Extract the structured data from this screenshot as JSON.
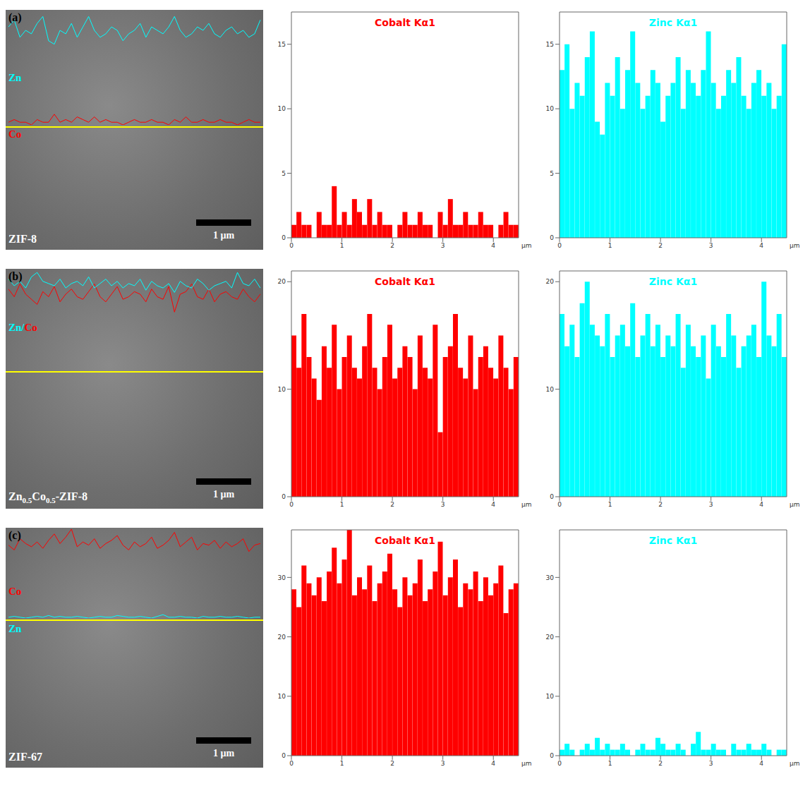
{
  "images": [
    {
      "label": "(a)",
      "sample": "ZIF-8",
      "scale_bar": "1 µm",
      "trace_labels": [
        "Zn",
        "Co"
      ]
    },
    {
      "label": "(b)",
      "sample": "Zn0.5Co0.5-ZIF-8",
      "scale_bar": "1 µm",
      "trace_labels": [
        "Zn/Co"
      ]
    },
    {
      "label": "(c)",
      "sample": "ZIF-67",
      "scale_bar": "1 µm",
      "trace_labels": [
        "Co",
        "Zn"
      ]
    }
  ],
  "chart_data": [
    {
      "type": "bar",
      "title": "Cobalt Kα1",
      "x_label": "µm",
      "color": "#ff0000",
      "xlim": [
        0,
        4.5
      ],
      "xticks": [
        0,
        1,
        2,
        3,
        4
      ],
      "ylim": [
        0,
        17.5
      ],
      "yticks": [
        0,
        5,
        10,
        15
      ],
      "x": [
        0.05,
        0.15,
        0.25,
        0.35,
        0.45,
        0.55,
        0.65,
        0.75,
        0.85,
        0.95,
        1.05,
        1.15,
        1.25,
        1.35,
        1.45,
        1.55,
        1.65,
        1.75,
        1.85,
        1.95,
        2.05,
        2.15,
        2.25,
        2.35,
        2.45,
        2.55,
        2.65,
        2.75,
        2.85,
        2.95,
        3.05,
        3.15,
        3.25,
        3.35,
        3.45,
        3.55,
        3.65,
        3.75,
        3.85,
        3.95,
        4.05,
        4.15,
        4.25,
        4.35,
        4.45
      ],
      "values": [
        1,
        2,
        1,
        1,
        0,
        2,
        1,
        1,
        4,
        1,
        2,
        1,
        3,
        2,
        1,
        3,
        1,
        2,
        1,
        1,
        0,
        1,
        2,
        1,
        1,
        2,
        1,
        1,
        0,
        2,
        1,
        3,
        1,
        1,
        2,
        1,
        1,
        2,
        1,
        1,
        0,
        1,
        2,
        1,
        1
      ]
    },
    {
      "type": "bar",
      "title": "Zinc Kα1",
      "x_label": "µm",
      "color": "#00ffff",
      "xlim": [
        0,
        4.5
      ],
      "xticks": [
        0,
        1,
        2,
        3,
        4
      ],
      "ylim": [
        0,
        17.5
      ],
      "yticks": [
        0,
        5,
        10,
        15
      ],
      "x": [
        0.05,
        0.15,
        0.25,
        0.35,
        0.45,
        0.55,
        0.65,
        0.75,
        0.85,
        0.95,
        1.05,
        1.15,
        1.25,
        1.35,
        1.45,
        1.55,
        1.65,
        1.75,
        1.85,
        1.95,
        2.05,
        2.15,
        2.25,
        2.35,
        2.45,
        2.55,
        2.65,
        2.75,
        2.85,
        2.95,
        3.05,
        3.15,
        3.25,
        3.35,
        3.45,
        3.55,
        3.65,
        3.75,
        3.85,
        3.95,
        4.05,
        4.15,
        4.25,
        4.35,
        4.45
      ],
      "values": [
        13,
        15,
        10,
        12,
        11,
        14,
        16,
        9,
        8,
        12,
        11,
        14,
        10,
        13,
        16,
        12,
        10,
        11,
        13,
        12,
        9,
        11,
        12,
        14,
        10,
        13,
        12,
        11,
        13,
        16,
        12,
        10,
        11,
        13,
        12,
        14,
        11,
        10,
        12,
        13,
        11,
        12,
        10,
        11,
        15
      ]
    },
    {
      "type": "bar",
      "title": "Cobalt Kα1",
      "x_label": "µm",
      "color": "#ff0000",
      "xlim": [
        0,
        4.5
      ],
      "xticks": [
        0,
        1,
        2,
        3,
        4
      ],
      "ylim": [
        0,
        21
      ],
      "yticks": [
        0,
        10,
        20
      ],
      "x": [
        0.05,
        0.15,
        0.25,
        0.35,
        0.45,
        0.55,
        0.65,
        0.75,
        0.85,
        0.95,
        1.05,
        1.15,
        1.25,
        1.35,
        1.45,
        1.55,
        1.65,
        1.75,
        1.85,
        1.95,
        2.05,
        2.15,
        2.25,
        2.35,
        2.45,
        2.55,
        2.65,
        2.75,
        2.85,
        2.95,
        3.05,
        3.15,
        3.25,
        3.35,
        3.45,
        3.55,
        3.65,
        3.75,
        3.85,
        3.95,
        4.05,
        4.15,
        4.25,
        4.35,
        4.45
      ],
      "values": [
        15,
        12,
        17,
        13,
        11,
        9,
        14,
        12,
        16,
        10,
        13,
        15,
        12,
        11,
        14,
        17,
        12,
        10,
        13,
        16,
        11,
        12,
        14,
        13,
        10,
        15,
        12,
        11,
        16,
        6,
        13,
        14,
        17,
        12,
        11,
        15,
        10,
        13,
        14,
        12,
        11,
        15,
        12,
        10,
        13
      ]
    },
    {
      "type": "bar",
      "title": "Zinc Kα1",
      "x_label": "µm",
      "color": "#00ffff",
      "xlim": [
        0,
        4.5
      ],
      "xticks": [
        0,
        1,
        2,
        3,
        4
      ],
      "ylim": [
        0,
        21
      ],
      "yticks": [
        0,
        10,
        20
      ],
      "x": [
        0.05,
        0.15,
        0.25,
        0.35,
        0.45,
        0.55,
        0.65,
        0.75,
        0.85,
        0.95,
        1.05,
        1.15,
        1.25,
        1.35,
        1.45,
        1.55,
        1.65,
        1.75,
        1.85,
        1.95,
        2.05,
        2.15,
        2.25,
        2.35,
        2.45,
        2.55,
        2.65,
        2.75,
        2.85,
        2.95,
        3.05,
        3.15,
        3.25,
        3.35,
        3.45,
        3.55,
        3.65,
        3.75,
        3.85,
        3.95,
        4.05,
        4.15,
        4.25,
        4.35,
        4.45
      ],
      "values": [
        17,
        14,
        16,
        13,
        18,
        20,
        16,
        15,
        14,
        17,
        13,
        15,
        16,
        14,
        18,
        13,
        15,
        17,
        14,
        16,
        13,
        15,
        14,
        17,
        12,
        16,
        14,
        13,
        15,
        11,
        16,
        14,
        13,
        17,
        15,
        12,
        14,
        15,
        16,
        13,
        20,
        15,
        14,
        17,
        13
      ]
    },
    {
      "type": "bar",
      "title": "Cobalt Kα1",
      "x_label": "µm",
      "color": "#ff0000",
      "xlim": [
        0,
        4.5
      ],
      "xticks": [
        0,
        1,
        2,
        3,
        4
      ],
      "ylim": [
        0,
        38
      ],
      "yticks": [
        0,
        10,
        20,
        30
      ],
      "x": [
        0.05,
        0.15,
        0.25,
        0.35,
        0.45,
        0.55,
        0.65,
        0.75,
        0.85,
        0.95,
        1.05,
        1.15,
        1.25,
        1.35,
        1.45,
        1.55,
        1.65,
        1.75,
        1.85,
        1.95,
        2.05,
        2.15,
        2.25,
        2.35,
        2.45,
        2.55,
        2.65,
        2.75,
        2.85,
        2.95,
        3.05,
        3.15,
        3.25,
        3.35,
        3.45,
        3.55,
        3.65,
        3.75,
        3.85,
        3.95,
        4.05,
        4.15,
        4.25,
        4.35,
        4.45
      ],
      "values": [
        28,
        25,
        32,
        29,
        27,
        30,
        26,
        31,
        35,
        29,
        33,
        38,
        27,
        30,
        28,
        32,
        26,
        29,
        31,
        34,
        28,
        25,
        30,
        27,
        29,
        33,
        26,
        28,
        31,
        36,
        27,
        30,
        33,
        25,
        29,
        28,
        31,
        26,
        30,
        27,
        29,
        32,
        24,
        28,
        29
      ]
    },
    {
      "type": "bar",
      "title": "Zinc Kα1",
      "x_label": "µm",
      "color": "#00ffff",
      "xlim": [
        0,
        4.5
      ],
      "xticks": [
        0,
        1,
        2,
        3,
        4
      ],
      "ylim": [
        0,
        38
      ],
      "yticks": [
        0,
        10,
        20,
        30
      ],
      "x": [
        0.05,
        0.15,
        0.25,
        0.35,
        0.45,
        0.55,
        0.65,
        0.75,
        0.85,
        0.95,
        1.05,
        1.15,
        1.25,
        1.35,
        1.45,
        1.55,
        1.65,
        1.75,
        1.85,
        1.95,
        2.05,
        2.15,
        2.25,
        2.35,
        2.45,
        2.55,
        2.65,
        2.75,
        2.85,
        2.95,
        3.05,
        3.15,
        3.25,
        3.35,
        3.45,
        3.55,
        3.65,
        3.75,
        3.85,
        3.95,
        4.05,
        4.15,
        4.25,
        4.35,
        4.45
      ],
      "values": [
        1,
        2,
        1,
        0,
        1,
        2,
        1,
        3,
        1,
        2,
        1,
        1,
        2,
        1,
        0,
        1,
        2,
        1,
        1,
        3,
        2,
        1,
        1,
        2,
        1,
        0,
        2,
        4,
        1,
        1,
        2,
        1,
        1,
        0,
        2,
        1,
        1,
        2,
        1,
        1,
        2,
        1,
        0,
        1,
        1
      ]
    }
  ]
}
